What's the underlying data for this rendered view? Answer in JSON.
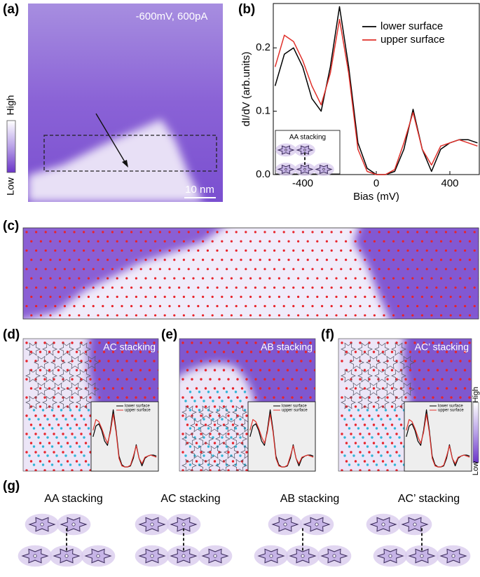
{
  "panel_a": {
    "label": "(a)",
    "condition": "-600mV, 600pA",
    "colorbar": {
      "high": "High",
      "low": "Low"
    },
    "scale_bar": "10 nm"
  },
  "panel_b": {
    "label": "(b)"
  },
  "chart_data": {
    "type": "line",
    "xlabel": "Bias (mV)",
    "ylabel": "dI/dV (arb.units)",
    "inset_label": "AA stacking",
    "x": [
      -550,
      -500,
      -450,
      -400,
      -350,
      -300,
      -250,
      -200,
      -150,
      -100,
      -50,
      0,
      50,
      100,
      150,
      200,
      250,
      300,
      350,
      400,
      450,
      500,
      550
    ],
    "series": [
      {
        "name": "lower surface",
        "color": "#000000",
        "values": [
          0.14,
          0.19,
          0.2,
          0.17,
          0.12,
          0.1,
          0.17,
          0.265,
          0.17,
          0.05,
          0.01,
          0.0,
          0.0,
          0.005,
          0.04,
          0.103,
          0.04,
          0.005,
          0.04,
          0.05,
          0.055,
          0.055,
          0.05
        ]
      },
      {
        "name": "upper surface",
        "color": "#e0302a",
        "values": [
          0.17,
          0.22,
          0.21,
          0.18,
          0.14,
          0.11,
          0.16,
          0.245,
          0.16,
          0.04,
          0.005,
          0.0,
          0.0,
          0.008,
          0.05,
          0.098,
          0.04,
          0.015,
          0.045,
          0.05,
          0.055,
          0.05,
          0.045
        ]
      }
    ],
    "xlim": [
      -560,
      560
    ],
    "ylim": [
      0,
      0.27
    ],
    "xticks": [
      -400,
      0,
      400
    ],
    "yticks": [
      {
        "value": 0,
        "label": "0.0"
      },
      0.1,
      0.2
    ],
    "legend": "upper right"
  },
  "panel_c": {
    "label": "(c)"
  },
  "panels_stacking": [
    {
      "label": "(d)",
      "title": "AC stacking"
    },
    {
      "label": "(e)",
      "title": "AB stacking"
    },
    {
      "label": "(f)",
      "title": "AC’ stacking"
    }
  ],
  "colorbar_f": {
    "high": "High",
    "low": "Low"
  },
  "panel_g": {
    "label": "(g)",
    "models": [
      "AA stacking",
      "AC stacking",
      "AB stacking",
      "AC’ stacking"
    ]
  }
}
